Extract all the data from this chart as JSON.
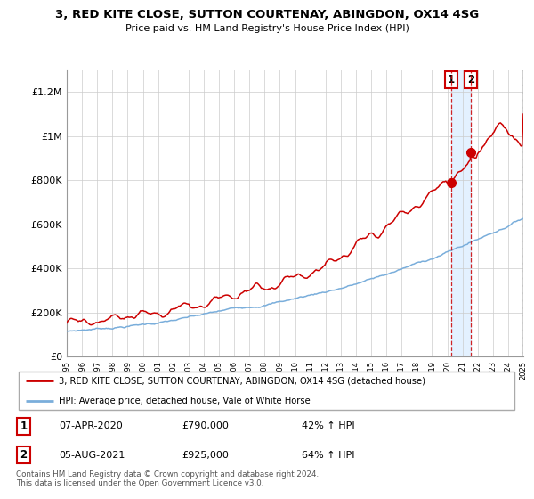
{
  "title1": "3, RED KITE CLOSE, SUTTON COURTENAY, ABINGDON, OX14 4SG",
  "title2": "Price paid vs. HM Land Registry's House Price Index (HPI)",
  "legend_line1": "3, RED KITE CLOSE, SUTTON COURTENAY, ABINGDON, OX14 4SG (detached house)",
  "legend_line2": "HPI: Average price, detached house, Vale of White Horse",
  "annotation1_label": "1",
  "annotation1_date": "07-APR-2020",
  "annotation1_price": "£790,000",
  "annotation1_hpi": "42% ↑ HPI",
  "annotation2_label": "2",
  "annotation2_date": "05-AUG-2021",
  "annotation2_price": "£925,000",
  "annotation2_hpi": "64% ↑ HPI",
  "copyright": "Contains HM Land Registry data © Crown copyright and database right 2024.\nThis data is licensed under the Open Government Licence v3.0.",
  "red_color": "#cc0000",
  "blue_color": "#7aaedb",
  "shade_color": "#ddeeff",
  "annotation_color": "#cc0000",
  "background_color": "#ffffff",
  "grid_color": "#cccccc",
  "ylim": [
    0,
    1300000
  ],
  "yticks": [
    0,
    200000,
    400000,
    600000,
    800000,
    1000000,
    1200000
  ],
  "ytick_labels": [
    "£0",
    "£200K",
    "£400K",
    "£600K",
    "£800K",
    "£1M",
    "£1.2M"
  ],
  "start_year": 1995,
  "end_year": 2025,
  "sale1_year": 2020.25,
  "sale1_value": 790000,
  "sale2_year": 2021.583,
  "sale2_value": 925000
}
